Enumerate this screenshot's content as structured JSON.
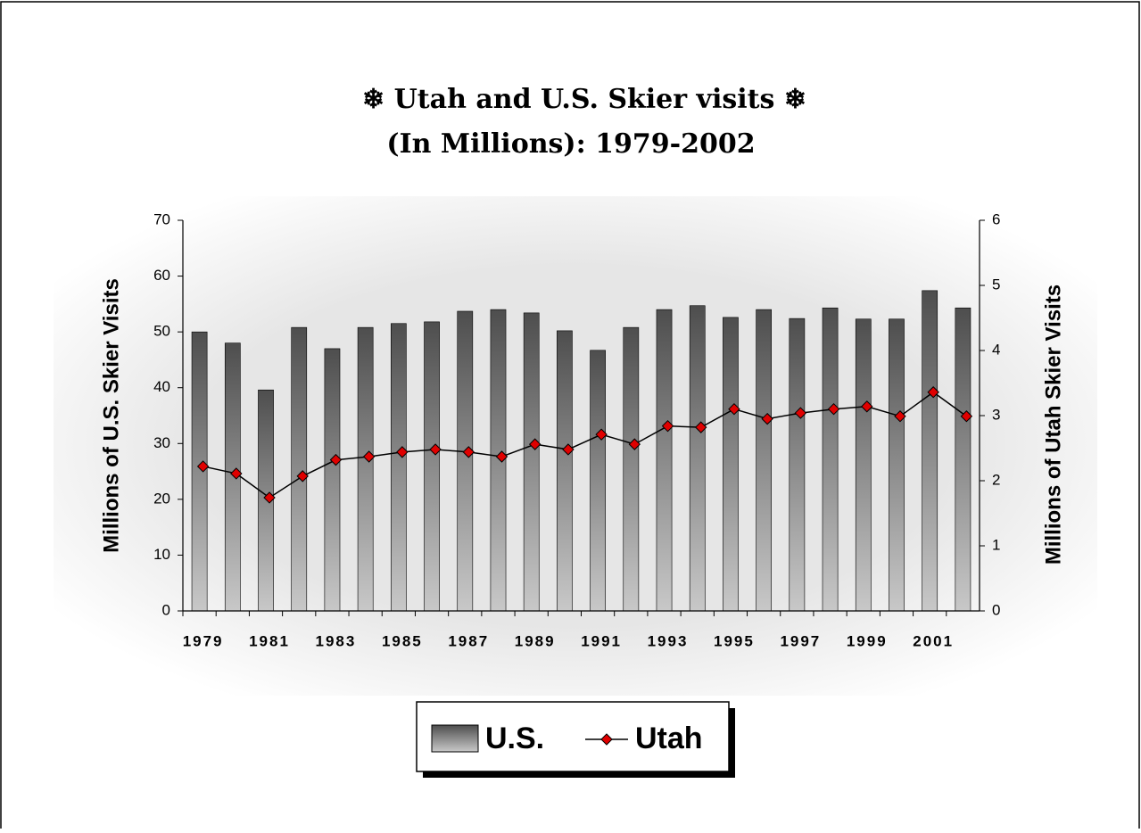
{
  "chart_data": {
    "type": "bar",
    "title": "❄ Utah and U.S. Skier visits ❄",
    "subtitle": "(In Millions): 1979-2002",
    "y_label": "Millions of U.S. Skier Visits",
    "y2_label": "Millions of Utah Skier Visits",
    "categories": [
      "1979",
      null,
      "1981",
      null,
      "1983",
      null,
      "1985",
      null,
      "1987",
      null,
      "1989",
      null,
      "1991",
      null,
      "1993",
      null,
      "1995",
      null,
      "1997",
      null,
      "1999",
      null,
      "2001",
      null
    ],
    "series": [
      {
        "name": "U.S.",
        "type": "bar",
        "color": "#5a5a5a",
        "values": [
          50,
          48,
          39.6,
          50.8,
          47,
          50.8,
          51.5,
          51.8,
          53.7,
          54,
          53.4,
          50.2,
          46.7,
          50.8,
          54,
          54.7,
          52.6,
          54,
          52.4,
          54.3,
          52.3,
          52.3,
          57.4,
          54.3
        ]
      },
      {
        "name": "Utah",
        "type": "line",
        "axis": "y2",
        "color": "#e00000",
        "values": [
          2.22,
          2.11,
          1.74,
          2.07,
          2.32,
          2.37,
          2.44,
          2.48,
          2.44,
          2.37,
          2.56,
          2.48,
          2.71,
          2.56,
          2.84,
          2.82,
          3.1,
          2.95,
          3.04,
          3.1,
          3.14,
          2.99,
          3.36,
          2.99
        ]
      }
    ],
    "ylim": [
      0,
      70
    ],
    "yticks": [
      0,
      10,
      20,
      30,
      40,
      50,
      60,
      70
    ],
    "y2lim": [
      0,
      6
    ],
    "y2ticks": [
      0,
      1,
      2,
      3,
      4,
      5,
      6
    ],
    "legend": "bottom"
  }
}
